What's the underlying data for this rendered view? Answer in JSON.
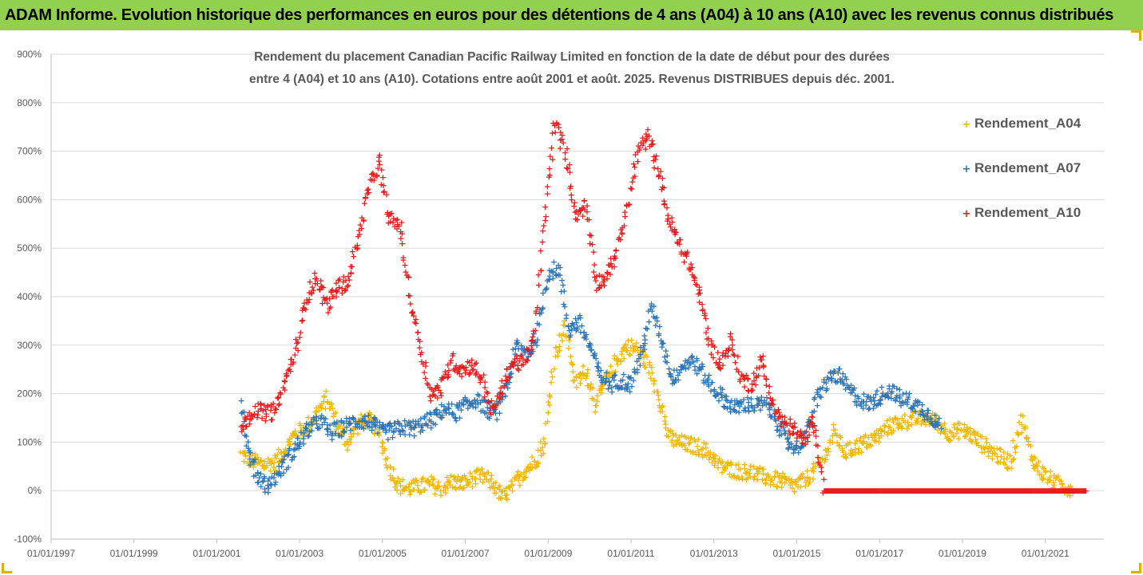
{
  "header": {
    "text": "ADAM Informe. Evolution historique des performances en euros pour des détentions de 4 ans (A04) à 10 ans (A10) avec les revenus connus distribués"
  },
  "chart_data": {
    "type": "scatter",
    "title_lines": [
      "Rendement du placement Canadian Pacific Railway Limited en fonction de la date de début pour des durées",
      "entre 4 (A04) et 10 ans (A10). Cotations entre août 2001 et août. 2025. Revenus DISTRIBUES depuis déc. 2001."
    ],
    "xlabel": "",
    "ylabel": "",
    "x_range": [
      "1997-01-01",
      "2022-06-01"
    ],
    "ylim": [
      -100,
      900
    ],
    "y_ticks": [
      "-100%",
      "0%",
      "100%",
      "200%",
      "300%",
      "400%",
      "500%",
      "600%",
      "700%",
      "800%",
      "900%"
    ],
    "x_ticks": [
      "01/01/1997",
      "01/01/1999",
      "01/01/2001",
      "01/01/2003",
      "01/01/2005",
      "01/01/2007",
      "01/01/2009",
      "01/01/2011",
      "01/01/2013",
      "01/01/2015",
      "01/01/2017",
      "01/01/2019",
      "01/01/2021"
    ],
    "gridlines": "horizontal",
    "legend_position": "right",
    "marker": "+",
    "series": [
      {
        "name": "Rendement_A04",
        "color": "#f2b800",
        "points": [
          [
            "2001-08",
            75
          ],
          [
            "2001-12",
            60
          ],
          [
            "2002-03",
            55
          ],
          [
            "2002-06",
            60
          ],
          [
            "2002-09",
            90
          ],
          [
            "2002-12",
            120
          ],
          [
            "2003-03",
            130
          ],
          [
            "2003-06",
            160
          ],
          [
            "2003-09",
            190
          ],
          [
            "2003-12",
            135
          ],
          [
            "2004-03",
            100
          ],
          [
            "2004-06",
            140
          ],
          [
            "2004-09",
            145
          ],
          [
            "2004-12",
            125
          ],
          [
            "2005-03",
            50
          ],
          [
            "2005-06",
            10
          ],
          [
            "2005-09",
            5
          ],
          [
            "2005-12",
            10
          ],
          [
            "2006-03",
            15
          ],
          [
            "2006-06",
            5
          ],
          [
            "2006-09",
            20
          ],
          [
            "2006-12",
            15
          ],
          [
            "2007-03",
            25
          ],
          [
            "2007-06",
            30
          ],
          [
            "2007-09",
            15
          ],
          [
            "2007-12",
            -15
          ],
          [
            "2008-03",
            10
          ],
          [
            "2008-06",
            40
          ],
          [
            "2008-09",
            60
          ],
          [
            "2008-12",
            100
          ],
          [
            "2009-03",
            280
          ],
          [
            "2009-06",
            340
          ],
          [
            "2009-09",
            220
          ],
          [
            "2009-12",
            250
          ],
          [
            "2010-03",
            180
          ],
          [
            "2010-06",
            230
          ],
          [
            "2010-09",
            270
          ],
          [
            "2010-12",
            300
          ],
          [
            "2011-03",
            290
          ],
          [
            "2011-06",
            260
          ],
          [
            "2011-09",
            200
          ],
          [
            "2011-12",
            110
          ],
          [
            "2012-03",
            100
          ],
          [
            "2012-06",
            95
          ],
          [
            "2012-09",
            90
          ],
          [
            "2012-12",
            75
          ],
          [
            "2013-03",
            50
          ],
          [
            "2013-06",
            45
          ],
          [
            "2013-09",
            40
          ],
          [
            "2013-12",
            40
          ],
          [
            "2014-03",
            30
          ],
          [
            "2014-06",
            25
          ],
          [
            "2014-09",
            20
          ],
          [
            "2014-12",
            10
          ],
          [
            "2015-03",
            20
          ],
          [
            "2015-06",
            40
          ],
          [
            "2015-09",
            70
          ],
          [
            "2015-12",
            120
          ],
          [
            "2016-03",
            80
          ],
          [
            "2016-06",
            90
          ],
          [
            "2016-09",
            100
          ],
          [
            "2016-12",
            110
          ],
          [
            "2017-03",
            130
          ],
          [
            "2017-06",
            140
          ],
          [
            "2017-09",
            145
          ],
          [
            "2017-12",
            150
          ],
          [
            "2018-03",
            150
          ],
          [
            "2018-06",
            140
          ],
          [
            "2018-09",
            120
          ],
          [
            "2018-12",
            125
          ],
          [
            "2019-03",
            120
          ],
          [
            "2019-06",
            100
          ],
          [
            "2019-09",
            85
          ],
          [
            "2019-12",
            70
          ],
          [
            "2020-03",
            60
          ],
          [
            "2020-06",
            150
          ],
          [
            "2020-09",
            70
          ],
          [
            "2020-12",
            40
          ],
          [
            "2021-03",
            20
          ],
          [
            "2021-06",
            10
          ],
          [
            "2021-09",
            5
          ]
        ]
      },
      {
        "name": "Rendement_A07",
        "color": "#2e75b6",
        "points": [
          [
            "2001-08",
            190
          ],
          [
            "2001-10",
            80
          ],
          [
            "2002-01",
            30
          ],
          [
            "2002-04",
            10
          ],
          [
            "2002-07",
            40
          ],
          [
            "2002-10",
            70
          ],
          [
            "2003-01",
            100
          ],
          [
            "2003-04",
            130
          ],
          [
            "2003-07",
            145
          ],
          [
            "2003-10",
            120
          ],
          [
            "2004-01",
            130
          ],
          [
            "2004-04",
            140
          ],
          [
            "2004-07",
            145
          ],
          [
            "2004-10",
            140
          ],
          [
            "2005-01",
            120
          ],
          [
            "2005-04",
            125
          ],
          [
            "2005-07",
            130
          ],
          [
            "2005-10",
            130
          ],
          [
            "2006-01",
            140
          ],
          [
            "2006-04",
            150
          ],
          [
            "2006-07",
            170
          ],
          [
            "2006-10",
            160
          ],
          [
            "2007-01",
            175
          ],
          [
            "2007-04",
            190
          ],
          [
            "2007-07",
            170
          ],
          [
            "2007-10",
            160
          ],
          [
            "2008-01",
            220
          ],
          [
            "2008-04",
            300
          ],
          [
            "2008-07",
            280
          ],
          [
            "2008-10",
            320
          ],
          [
            "2009-01",
            450
          ],
          [
            "2009-04",
            460
          ],
          [
            "2009-07",
            330
          ],
          [
            "2009-10",
            350
          ],
          [
            "2010-01",
            300
          ],
          [
            "2010-04",
            240
          ],
          [
            "2010-07",
            220
          ],
          [
            "2010-10",
            230
          ],
          [
            "2011-01",
            220
          ],
          [
            "2011-04",
            280
          ],
          [
            "2011-07",
            380
          ],
          [
            "2011-10",
            310
          ],
          [
            "2012-01",
            230
          ],
          [
            "2012-04",
            260
          ],
          [
            "2012-07",
            270
          ],
          [
            "2012-10",
            240
          ],
          [
            "2013-01",
            210
          ],
          [
            "2013-04",
            190
          ],
          [
            "2013-07",
            170
          ],
          [
            "2013-10",
            180
          ],
          [
            "2014-01",
            175
          ],
          [
            "2014-04",
            180
          ],
          [
            "2014-07",
            150
          ],
          [
            "2014-10",
            100
          ],
          [
            "2015-01",
            90
          ],
          [
            "2015-04",
            120
          ],
          [
            "2015-07",
            190
          ],
          [
            "2015-10",
            230
          ],
          [
            "2016-01",
            240
          ],
          [
            "2016-04",
            210
          ],
          [
            "2016-07",
            190
          ],
          [
            "2016-10",
            180
          ],
          [
            "2017-01",
            195
          ],
          [
            "2017-04",
            210
          ],
          [
            "2017-07",
            190
          ],
          [
            "2017-10",
            185
          ],
          [
            "2018-01",
            170
          ],
          [
            "2018-04",
            155
          ],
          [
            "2018-07",
            130
          ]
        ]
      },
      {
        "name": "Rendement_A10",
        "color": "#e81c1c",
        "points": [
          [
            "2001-08",
            130
          ],
          [
            "2001-12",
            170
          ],
          [
            "2002-03",
            160
          ],
          [
            "2002-06",
            165
          ],
          [
            "2002-09",
            230
          ],
          [
            "2002-12",
            290
          ],
          [
            "2003-03",
            400
          ],
          [
            "2003-06",
            440
          ],
          [
            "2003-09",
            380
          ],
          [
            "2003-12",
            420
          ],
          [
            "2004-03",
            430
          ],
          [
            "2004-06",
            520
          ],
          [
            "2004-09",
            620
          ],
          [
            "2004-12",
            680
          ],
          [
            "2005-03",
            560
          ],
          [
            "2005-06",
            550
          ],
          [
            "2005-09",
            400
          ],
          [
            "2005-12",
            300
          ],
          [
            "2006-03",
            200
          ],
          [
            "2006-06",
            210
          ],
          [
            "2006-09",
            270
          ],
          [
            "2006-12",
            250
          ],
          [
            "2007-03",
            260
          ],
          [
            "2007-06",
            230
          ],
          [
            "2007-09",
            160
          ],
          [
            "2007-12",
            220
          ],
          [
            "2008-03",
            270
          ],
          [
            "2008-06",
            260
          ],
          [
            "2008-09",
            320
          ],
          [
            "2008-12",
            560
          ],
          [
            "2009-03",
            760
          ],
          [
            "2009-06",
            700
          ],
          [
            "2009-09",
            570
          ],
          [
            "2009-12",
            590
          ],
          [
            "2010-03",
            430
          ],
          [
            "2010-06",
            440
          ],
          [
            "2010-09",
            500
          ],
          [
            "2010-12",
            580
          ],
          [
            "2011-03",
            700
          ],
          [
            "2011-06",
            730
          ],
          [
            "2011-09",
            660
          ],
          [
            "2011-12",
            560
          ],
          [
            "2012-03",
            510
          ],
          [
            "2012-06",
            470
          ],
          [
            "2012-09",
            400
          ],
          [
            "2012-12",
            300
          ],
          [
            "2013-03",
            260
          ],
          [
            "2013-06",
            310
          ],
          [
            "2013-09",
            230
          ],
          [
            "2013-12",
            220
          ],
          [
            "2014-03",
            270
          ],
          [
            "2014-06",
            180
          ],
          [
            "2014-09",
            140
          ],
          [
            "2014-12",
            130
          ],
          [
            "2015-03",
            100
          ],
          [
            "2015-06",
            150
          ],
          [
            "2015-09",
            0
          ],
          [
            "2016-06",
            0
          ],
          [
            "2017-06",
            0
          ],
          [
            "2018-06",
            0
          ],
          [
            "2019-06",
            0
          ],
          [
            "2020-06",
            0
          ],
          [
            "2021-06",
            0
          ],
          [
            "2022-01",
            0
          ]
        ]
      }
    ]
  }
}
